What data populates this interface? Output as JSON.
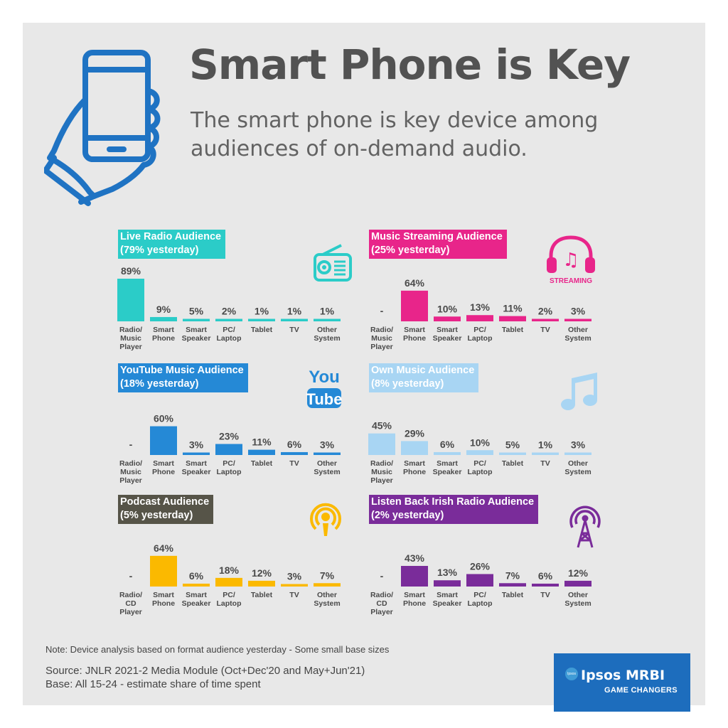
{
  "title": "Smart Phone is Key",
  "subtitle_lines": [
    "The smart phone is key device among",
    "audiences of on-demand audio."
  ],
  "note": "Note: Device analysis based on format audience yesterday - Some small base sizes",
  "source_lines": [
    "Source: JNLR 2021-2 Media Module (Oct+Dec'20 and May+Jun'21)",
    "Base: All 15-24 - estimate share of time spent"
  ],
  "logo": {
    "brand": "Ipsos MRBI",
    "tagline": "GAME CHANGERS",
    "mark_text": "Ipsos"
  },
  "icons": {
    "hero": "hand-holding-phone-icon",
    "live_radio": "radio-icon",
    "music_streaming": "headphones-music-icon",
    "youtube_music": "youtube-logo-icon",
    "own_music": "music-note-icon",
    "podcast": "podcast-icon",
    "listen_back": "radio-tower-icon"
  },
  "streaming_badge": "STREAMING",
  "youtube_logo_lines": [
    "You",
    "Tube"
  ],
  "colors": {
    "background": "#e8e8e8",
    "live_radio": "#2bccc8",
    "music_streaming": "#e8258a",
    "youtube_music": "#2589d6",
    "own_music": "#a8d5f3",
    "podcast": "#fbb900",
    "listen_back": "#7a2c9a",
    "podcast_title": "#565448"
  },
  "chart_data": [
    {
      "id": "live_radio",
      "type": "bar",
      "title_lines": [
        "Live Radio Audience",
        "(79% yesterday)"
      ],
      "categories": [
        [
          "Radio/",
          "Music",
          "Player"
        ],
        [
          "Smart",
          "Phone"
        ],
        [
          "Smart",
          "Speaker"
        ],
        [
          "PC/",
          "Laptop"
        ],
        [
          "Tablet"
        ],
        [
          "TV"
        ],
        [
          "Other",
          "System"
        ]
      ],
      "values": [
        89,
        9,
        5,
        2,
        1,
        1,
        1
      ],
      "labels": [
        "89%",
        "9%",
        "5%",
        "2%",
        "1%",
        "1%",
        "1%"
      ],
      "color": "#2bccc8",
      "title_color": "#2bccc8"
    },
    {
      "id": "music_streaming",
      "type": "bar",
      "title_lines": [
        "Music Streaming Audience",
        "(25% yesterday)"
      ],
      "categories": [
        [
          "Radio/",
          "Music",
          "Player"
        ],
        [
          "Smart",
          "Phone"
        ],
        [
          "Smart",
          "Speaker"
        ],
        [
          "PC/",
          "Laptop"
        ],
        [
          "Tablet"
        ],
        [
          "TV"
        ],
        [
          "Other",
          "System"
        ]
      ],
      "values": [
        null,
        64,
        10,
        13,
        11,
        2,
        3
      ],
      "labels": [
        "-",
        "64%",
        "10%",
        "13%",
        "11%",
        "2%",
        "3%"
      ],
      "color": "#e8258a",
      "title_color": "#e8258a"
    },
    {
      "id": "youtube_music",
      "type": "bar",
      "title_lines": [
        "YouTube Music Audience",
        "(18% yesterday)"
      ],
      "categories": [
        [
          "Radio/",
          "Music",
          "Player"
        ],
        [
          "Smart",
          "Phone"
        ],
        [
          "Smart",
          "Speaker"
        ],
        [
          "PC/",
          "Laptop"
        ],
        [
          "Tablet"
        ],
        [
          "TV"
        ],
        [
          "Other",
          "System"
        ]
      ],
      "values": [
        null,
        60,
        3,
        23,
        11,
        6,
        3
      ],
      "labels": [
        "-",
        "60%",
        "3%",
        "23%",
        "11%",
        "6%",
        "3%"
      ],
      "color": "#2589d6",
      "title_color": "#2589d6"
    },
    {
      "id": "own_music",
      "type": "bar",
      "title_lines": [
        "Own Music Audience",
        "(8% yesterday)"
      ],
      "categories": [
        [
          "Radio/",
          "Music",
          "Player"
        ],
        [
          "Smart",
          "Phone"
        ],
        [
          "Smart",
          "Speaker"
        ],
        [
          "PC/",
          "Laptop"
        ],
        [
          "Tablet"
        ],
        [
          "TV"
        ],
        [
          "Other",
          "System"
        ]
      ],
      "values": [
        45,
        29,
        6,
        10,
        5,
        1,
        3
      ],
      "labels": [
        "45%",
        "29%",
        "6%",
        "10%",
        "5%",
        "1%",
        "3%"
      ],
      "color": "#a8d5f3",
      "title_color": "#a8d5f3"
    },
    {
      "id": "podcast",
      "type": "bar",
      "title_lines": [
        "Podcast Audience",
        "(5% yesterday)"
      ],
      "categories": [
        [
          "Radio/",
          "CD",
          "Player"
        ],
        [
          "Smart",
          "Phone"
        ],
        [
          "Smart",
          "Speaker"
        ],
        [
          "PC/",
          "Laptop"
        ],
        [
          "Tablet"
        ],
        [
          "TV"
        ],
        [
          "Other",
          "System"
        ]
      ],
      "values": [
        null,
        64,
        6,
        18,
        12,
        3,
        7
      ],
      "labels": [
        "-",
        "64%",
        "6%",
        "18%",
        "12%",
        "3%",
        "7%"
      ],
      "color": "#fbb900",
      "title_color": "#565448"
    },
    {
      "id": "listen_back",
      "type": "bar",
      "title_lines": [
        "Listen Back Irish Radio Audience",
        "(2% yesterday)"
      ],
      "categories": [
        [
          "Radio/",
          "CD",
          "Player"
        ],
        [
          "Smart",
          "Phone"
        ],
        [
          "Smart",
          "Speaker"
        ],
        [
          "PC/",
          "Laptop"
        ],
        [
          "Tablet"
        ],
        [
          "TV"
        ],
        [
          "Other",
          "System"
        ]
      ],
      "values": [
        null,
        43,
        13,
        26,
        7,
        6,
        12
      ],
      "labels": [
        "-",
        "43%",
        "13%",
        "26%",
        "7%",
        "6%",
        "12%"
      ],
      "color": "#7a2c9a",
      "title_color": "#7a2c9a"
    }
  ]
}
